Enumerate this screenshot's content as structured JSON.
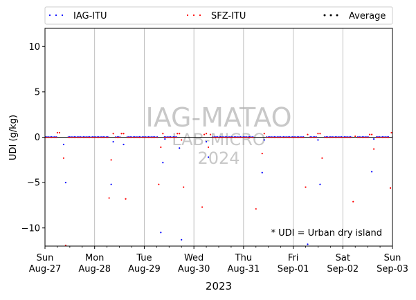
{
  "chart_data": {
    "type": "scatter",
    "ylabel": "UDI (g/kg)",
    "xlabel": "2023",
    "ylim": [
      -12,
      12
    ],
    "yticks": [
      -10,
      -5,
      0,
      5,
      10
    ],
    "xlim": [
      "2023-08-27T00:00",
      "2023-09-03T00:00"
    ],
    "xticks": [
      {
        "date": "2023-08-27",
        "day": "Sun",
        "label": "Aug-27"
      },
      {
        "date": "2023-08-28",
        "day": "Mon",
        "label": "Aug-28"
      },
      {
        "date": "2023-08-29",
        "day": "Tue",
        "label": "Aug-29"
      },
      {
        "date": "2023-08-30",
        "day": "Wed",
        "label": "Aug-30"
      },
      {
        "date": "2023-08-31",
        "day": "Thu",
        "label": "Aug-31"
      },
      {
        "date": "2023-09-01",
        "day": "Fri",
        "label": "Sep-01"
      },
      {
        "date": "2023-09-02",
        "day": "Sat",
        "label": "Sep-02"
      },
      {
        "date": "2023-09-03",
        "day": "Sun",
        "label": "Sep-03"
      }
    ],
    "grid": "vertical-daily",
    "legend": {
      "placement": "top",
      "entries": [
        "IAG-ITU",
        "SFZ-ITU",
        "Average"
      ]
    },
    "annotation": "* UDI = Urban dry island",
    "watermark": [
      "IAG-MATAO",
      "LAB-MICRO",
      "2024"
    ],
    "series": [
      {
        "name": "IAG-ITU",
        "color": "#0000ff",
        "points": [
          {
            "x": "2023-08-27T09:00",
            "y": -0.8
          },
          {
            "x": "2023-08-27T10:00",
            "y": -5.0
          },
          {
            "x": "2023-08-28T08:00",
            "y": -5.2
          },
          {
            "x": "2023-08-28T09:00",
            "y": -0.5
          },
          {
            "x": "2023-08-28T14:00",
            "y": -0.8
          },
          {
            "x": "2023-08-29T08:00",
            "y": -10.5
          },
          {
            "x": "2023-08-29T09:00",
            "y": -2.8
          },
          {
            "x": "2023-08-29T10:00",
            "y": -0.2
          },
          {
            "x": "2023-08-29T17:00",
            "y": -1.2
          },
          {
            "x": "2023-08-29T18:00",
            "y": -11.3
          },
          {
            "x": "2023-08-30T06:00",
            "y": -0.5
          },
          {
            "x": "2023-08-30T07:00",
            "y": -2.2
          },
          {
            "x": "2023-08-31T09:00",
            "y": -3.9
          },
          {
            "x": "2023-08-31T10:00",
            "y": -0.3
          },
          {
            "x": "2023-09-01T07:00",
            "y": -11.8
          },
          {
            "x": "2023-09-01T12:00",
            "y": -0.3
          },
          {
            "x": "2023-09-01T13:00",
            "y": -5.2
          },
          {
            "x": "2023-09-02T14:00",
            "y": -3.8
          },
          {
            "x": "2023-09-02T15:00",
            "y": -0.2
          }
        ]
      },
      {
        "name": "SFZ-ITU",
        "color": "#ff0000",
        "points": [
          {
            "x": "2023-08-27T06:00",
            "y": 0.5
          },
          {
            "x": "2023-08-27T07:00",
            "y": 0.5
          },
          {
            "x": "2023-08-27T09:00",
            "y": -2.3
          },
          {
            "x": "2023-08-27T10:00",
            "y": -12.0
          },
          {
            "x": "2023-08-28T07:00",
            "y": -6.7
          },
          {
            "x": "2023-08-28T08:00",
            "y": -2.5
          },
          {
            "x": "2023-08-28T09:00",
            "y": 0.4
          },
          {
            "x": "2023-08-28T13:00",
            "y": 0.4
          },
          {
            "x": "2023-08-28T14:00",
            "y": 0.4
          },
          {
            "x": "2023-08-28T15:00",
            "y": -6.8
          },
          {
            "x": "2023-08-29T07:00",
            "y": -5.2
          },
          {
            "x": "2023-08-29T08:00",
            "y": -1.1
          },
          {
            "x": "2023-08-29T09:00",
            "y": 0.4
          },
          {
            "x": "2023-08-29T16:00",
            "y": 0.4
          },
          {
            "x": "2023-08-29T17:00",
            "y": 0.4
          },
          {
            "x": "2023-08-29T18:00",
            "y": -0.3
          },
          {
            "x": "2023-08-29T19:00",
            "y": -5.5
          },
          {
            "x": "2023-08-30T04:00",
            "y": -7.7
          },
          {
            "x": "2023-08-30T05:00",
            "y": 0.3
          },
          {
            "x": "2023-08-30T06:00",
            "y": 0.4
          },
          {
            "x": "2023-08-30T07:00",
            "y": -1.1
          },
          {
            "x": "2023-08-30T08:00",
            "y": 0.3
          },
          {
            "x": "2023-08-31T06:00",
            "y": -7.9
          },
          {
            "x": "2023-08-31T09:00",
            "y": -1.8
          },
          {
            "x": "2023-08-31T10:00",
            "y": 0.4
          },
          {
            "x": "2023-09-01T06:00",
            "y": -5.5
          },
          {
            "x": "2023-09-01T07:00",
            "y": 0.3
          },
          {
            "x": "2023-09-01T12:00",
            "y": 0.4
          },
          {
            "x": "2023-09-01T13:00",
            "y": 0.4
          },
          {
            "x": "2023-09-01T14:00",
            "y": -2.3
          },
          {
            "x": "2023-09-02T05:00",
            "y": -7.1
          },
          {
            "x": "2023-09-02T06:00",
            "y": 0.1
          },
          {
            "x": "2023-09-02T13:00",
            "y": 0.3
          },
          {
            "x": "2023-09-02T14:00",
            "y": 0.3
          },
          {
            "x": "2023-09-02T15:00",
            "y": -1.3
          },
          {
            "x": "2023-09-02T23:00",
            "y": -5.6
          },
          {
            "x": "2023-09-02T23:30",
            "y": 0.5
          }
        ]
      },
      {
        "name": "Average",
        "color": "#000000",
        "points": []
      }
    ]
  }
}
